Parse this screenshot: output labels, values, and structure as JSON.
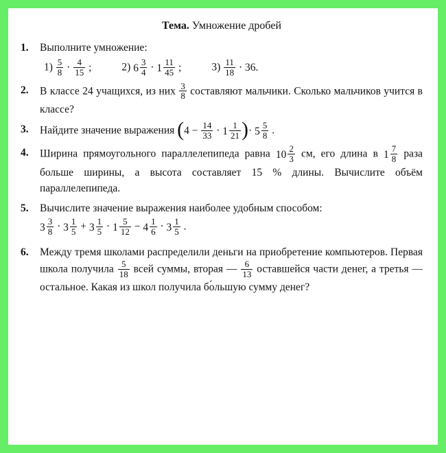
{
  "title_label": "Тема.",
  "title_text": "Умножение дробей",
  "problems": [
    {
      "n": "1.",
      "intro": "Выполните умножение:",
      "parts": [
        {
          "label": "1)",
          "expr_html": "<span class='frac'><span class='n'>5</span><span class='d'>8</span></span> · <span class='frac'><span class='n'>4</span><span class='d'>15</span></span> ;"
        },
        {
          "label": "2)",
          "expr_html": "<span class='mixed'><span class='whole'>6</span><span class='frac'><span class='n'>3</span><span class='d'>4</span></span></span> · <span class='mixed'><span class='whole'>1</span><span class='frac'><span class='n'>11</span><span class='d'>45</span></span></span> ;"
        },
        {
          "label": "3)",
          "expr_html": "<span class='frac'><span class='n'>11</span><span class='d'>18</span></span> · 36."
        }
      ]
    },
    {
      "n": "2.",
      "html": "В классе 24 учащихся, из них <span class='frac'><span class='n'>3</span><span class='d'>8</span></span> составляют мальчики. Сколько мальчиков учится в классе?"
    },
    {
      "n": "3.",
      "html": "Найдите значение выражения <span class='expr'><span class='lp'>(</span>4 &minus; <span class='frac'><span class='n'>14</span><span class='d'>33</span></span> · <span class='mixed'><span class='whole'>1</span><span class='frac'><span class='n'>1</span><span class='d'>21</span></span></span><span class='lp'>)</span>· <span class='mixed'><span class='whole'>5</span><span class='frac'><span class='n'>5</span><span class='d'>8</span></span></span></span> ."
    },
    {
      "n": "4.",
      "html": "Ширина прямоугольного параллелепипеда равна <span class='mixed'><span class='whole'>10</span><span class='frac'><span class='n'>2</span><span class='d'>3</span></span></span> см, его длина&nbsp;в <span class='mixed'><span class='whole'>1</span><span class='frac'><span class='n'>7</span><span class='d'>8</span></span></span> раза больше ширины, а высота составляет 15 % длины. Вычислите объём параллелепипеда."
    },
    {
      "n": "5.",
      "intro": "Вычислите значение выражения наиболее удобным способом:",
      "expr_below_html": "<span class='mixed'><span class='whole'>3</span><span class='frac'><span class='n'>3</span><span class='d'>8</span></span></span> · <span class='mixed'><span class='whole'>3</span><span class='frac'><span class='n'>1</span><span class='d'>5</span></span></span> + <span class='mixed'><span class='whole'>3</span><span class='frac'><span class='n'>1</span><span class='d'>5</span></span></span> · <span class='mixed'><span class='whole'>1</span><span class='frac'><span class='n'>5</span><span class='d'>12</span></span></span> &minus; <span class='mixed'><span class='whole'>4</span><span class='frac'><span class='n'>1</span><span class='d'>6</span></span></span> · <span class='mixed'><span class='whole'>3</span><span class='frac'><span class='n'>1</span><span class='d'>5</span></span></span> ."
    },
    {
      "n": "6.",
      "html": "Между тремя школами распределили деньги на приобретение компьютеров. Первая школа получила <span class='frac'><span class='n'>5</span><span class='d'>18</span></span> всей суммы, вторая — <span class='frac'><span class='n'>6</span><span class='d'>13</span></span> оставшейся части денег, а третья — остальное. Какая из школ получила б<span class='accent'>о</span>льшую сумму денег?"
    }
  ],
  "colors": {
    "border": "#66ee66",
    "paper": "#ffffff",
    "text": "#111111"
  },
  "typography": {
    "body_font": "Georgia / Times New Roman serif",
    "body_size_pt": 12,
    "title_size_pt": 12.5,
    "frac_size_pt": 10
  }
}
